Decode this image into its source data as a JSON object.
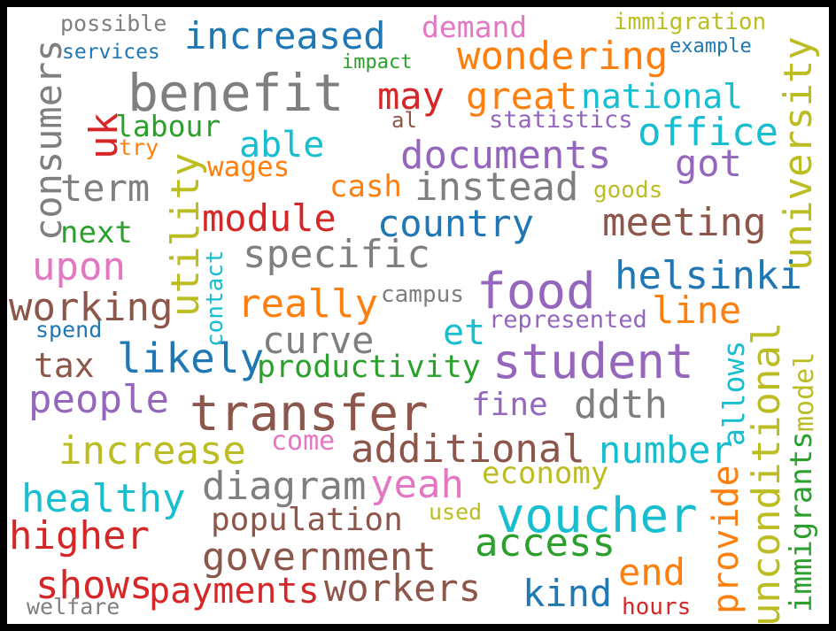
{
  "colors": {
    "blue": "#1f77b4",
    "orange": "#ff7f0e",
    "green": "#2ca02c",
    "red": "#d62728",
    "purple": "#9467bd",
    "brown": "#8c564b",
    "pink": "#e377c2",
    "gray": "#7f7f7f",
    "olive": "#bcbd22",
    "cyan": "#17becf"
  },
  "words": [
    {
      "text": "possible",
      "color": "gray"
    },
    {
      "text": "services",
      "color": "blue"
    },
    {
      "text": "increased",
      "color": "blue"
    },
    {
      "text": "demand",
      "color": "pink"
    },
    {
      "text": "immigration",
      "color": "olive"
    },
    {
      "text": "example",
      "color": "blue"
    },
    {
      "text": "wondering",
      "color": "orange"
    },
    {
      "text": "impact",
      "color": "green"
    },
    {
      "text": "benefit",
      "color": "gray"
    },
    {
      "text": "may",
      "color": "red"
    },
    {
      "text": "great",
      "color": "orange"
    },
    {
      "text": "national",
      "color": "cyan"
    },
    {
      "text": "labour",
      "color": "green"
    },
    {
      "text": "al",
      "color": "brown"
    },
    {
      "text": "statistics",
      "color": "purple"
    },
    {
      "text": "try",
      "color": "orange"
    },
    {
      "text": "able",
      "color": "cyan"
    },
    {
      "text": "office",
      "color": "cyan"
    },
    {
      "text": "documents",
      "color": "purple"
    },
    {
      "text": "wages",
      "color": "orange"
    },
    {
      "text": "got",
      "color": "purple"
    },
    {
      "text": "term",
      "color": "gray"
    },
    {
      "text": "cash",
      "color": "orange"
    },
    {
      "text": "instead",
      "color": "gray"
    },
    {
      "text": "goods",
      "color": "olive"
    },
    {
      "text": "module",
      "color": "red"
    },
    {
      "text": "country",
      "color": "blue"
    },
    {
      "text": "meeting",
      "color": "brown"
    },
    {
      "text": "next",
      "color": "green"
    },
    {
      "text": "specific",
      "color": "gray"
    },
    {
      "text": "upon",
      "color": "pink"
    },
    {
      "text": "helsinki",
      "color": "blue"
    },
    {
      "text": "food",
      "color": "purple"
    },
    {
      "text": "working",
      "color": "brown"
    },
    {
      "text": "really",
      "color": "orange"
    },
    {
      "text": "campus",
      "color": "gray"
    },
    {
      "text": "line",
      "color": "orange"
    },
    {
      "text": "spend",
      "color": "blue"
    },
    {
      "text": "represented",
      "color": "purple"
    },
    {
      "text": "et",
      "color": "cyan"
    },
    {
      "text": "curve",
      "color": "gray"
    },
    {
      "text": "tax",
      "color": "brown"
    },
    {
      "text": "likely",
      "color": "blue"
    },
    {
      "text": "productivity",
      "color": "green"
    },
    {
      "text": "student",
      "color": "purple"
    },
    {
      "text": "people",
      "color": "purple"
    },
    {
      "text": "transfer",
      "color": "brown"
    },
    {
      "text": "fine",
      "color": "purple"
    },
    {
      "text": "ddth",
      "color": "gray"
    },
    {
      "text": "come",
      "color": "pink"
    },
    {
      "text": "increase",
      "color": "olive"
    },
    {
      "text": "additional",
      "color": "brown"
    },
    {
      "text": "number",
      "color": "cyan"
    },
    {
      "text": "economy",
      "color": "olive"
    },
    {
      "text": "healthy",
      "color": "cyan"
    },
    {
      "text": "diagram",
      "color": "gray"
    },
    {
      "text": "yeah",
      "color": "pink"
    },
    {
      "text": "used",
      "color": "olive"
    },
    {
      "text": "voucher",
      "color": "cyan"
    },
    {
      "text": "higher",
      "color": "red"
    },
    {
      "text": "population",
      "color": "brown"
    },
    {
      "text": "access",
      "color": "green"
    },
    {
      "text": "government",
      "color": "brown"
    },
    {
      "text": "end",
      "color": "orange"
    },
    {
      "text": "shows",
      "color": "red"
    },
    {
      "text": "payments",
      "color": "red"
    },
    {
      "text": "workers",
      "color": "brown"
    },
    {
      "text": "kind",
      "color": "blue"
    },
    {
      "text": "welfare",
      "color": "gray"
    },
    {
      "text": "hours",
      "color": "red"
    },
    {
      "text": "consumers",
      "color": "gray"
    },
    {
      "text": "uk",
      "color": "red"
    },
    {
      "text": "utility",
      "color": "olive"
    },
    {
      "text": "contact",
      "color": "cyan"
    },
    {
      "text": "university",
      "color": "olive"
    },
    {
      "text": "allows",
      "color": "cyan"
    },
    {
      "text": "unconditional",
      "color": "olive"
    },
    {
      "text": "model",
      "color": "olive"
    },
    {
      "text": "immigrants",
      "color": "green"
    },
    {
      "text": "provide",
      "color": "orange"
    }
  ]
}
